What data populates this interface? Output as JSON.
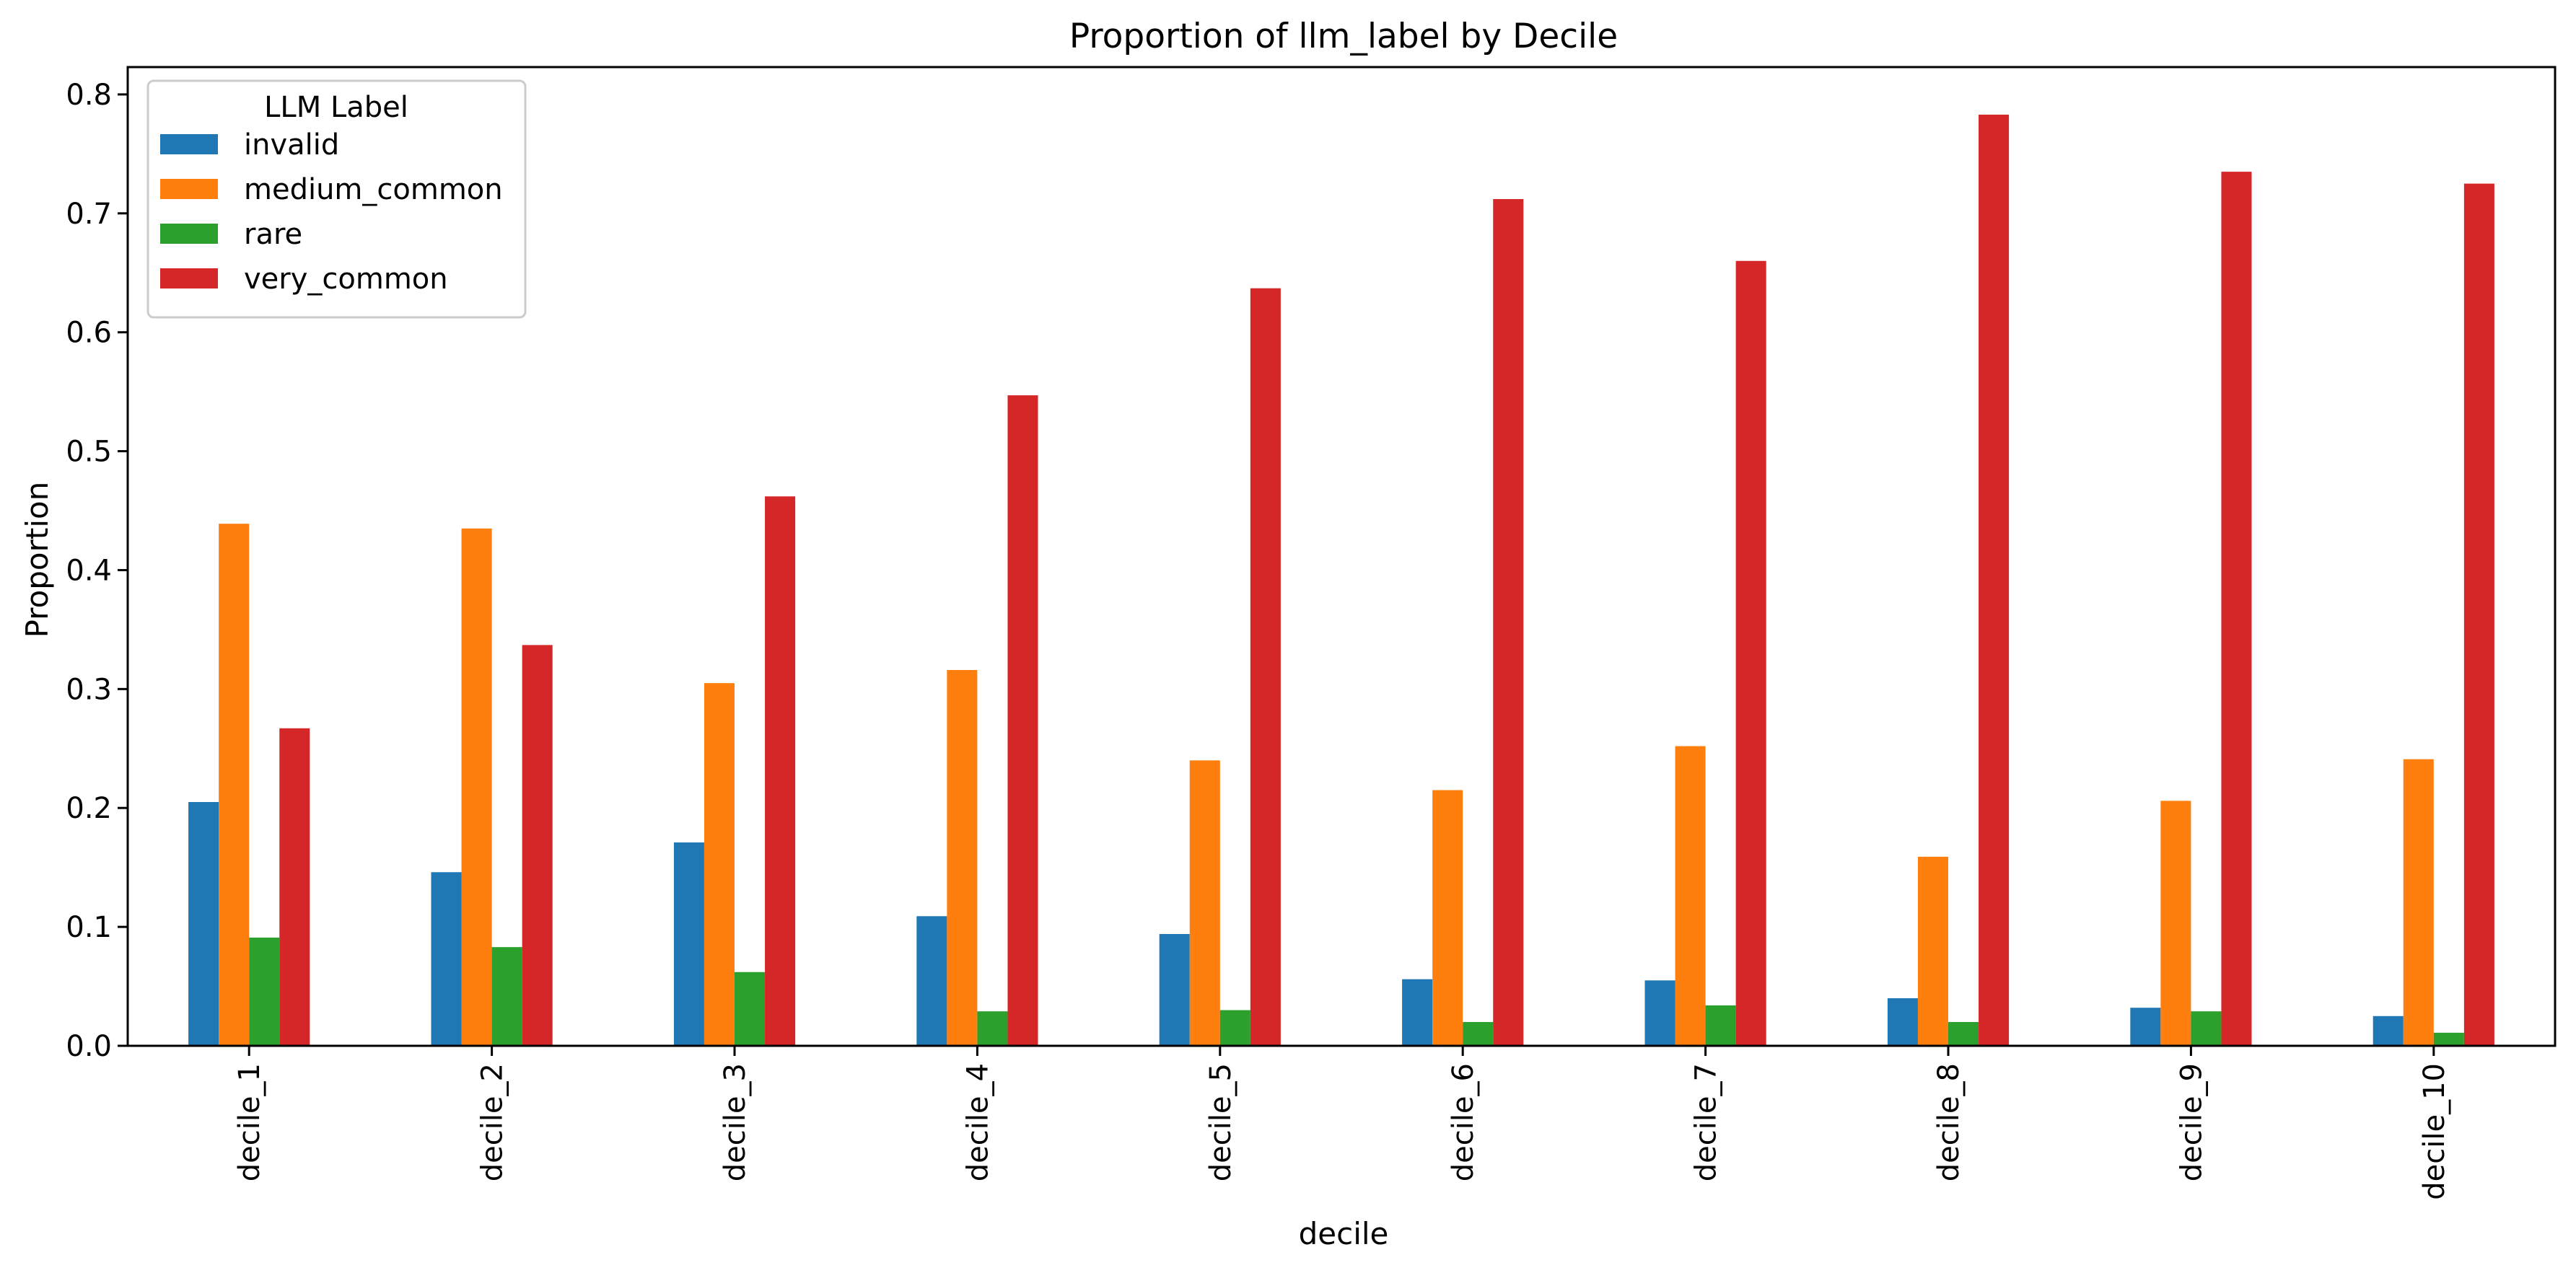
{
  "chart_data": {
    "type": "bar",
    "title": "Proportion of llm_label by Decile",
    "xlabel": "decile",
    "ylabel": "Proportion",
    "ylim": [
      0,
      0.823
    ],
    "yticks": [
      "0.0",
      "0.1",
      "0.2",
      "0.3",
      "0.4",
      "0.5",
      "0.6",
      "0.7",
      "0.8"
    ],
    "grid": false,
    "legend_title": "LLM Label",
    "legend_position": "top-left",
    "categories": [
      "decile_1",
      "decile_2",
      "decile_3",
      "decile_4",
      "decile_5",
      "decile_6",
      "decile_7",
      "decile_8",
      "decile_9",
      "decile_10"
    ],
    "series": [
      {
        "name": "invalid",
        "color": "#1f77b4",
        "values": [
          0.205,
          0.146,
          0.171,
          0.109,
          0.094,
          0.056,
          0.055,
          0.04,
          0.032,
          0.025
        ]
      },
      {
        "name": "medium_common",
        "color": "#ff7f0e",
        "values": [
          0.439,
          0.435,
          0.305,
          0.316,
          0.24,
          0.215,
          0.252,
          0.159,
          0.206,
          0.241
        ]
      },
      {
        "name": "rare",
        "color": "#2ca02c",
        "values": [
          0.091,
          0.083,
          0.062,
          0.029,
          0.03,
          0.02,
          0.034,
          0.02,
          0.029,
          0.011
        ]
      },
      {
        "name": "very_common",
        "color": "#d62728",
        "values": [
          0.267,
          0.337,
          0.462,
          0.547,
          0.637,
          0.712,
          0.66,
          0.783,
          0.735,
          0.725
        ]
      }
    ]
  }
}
